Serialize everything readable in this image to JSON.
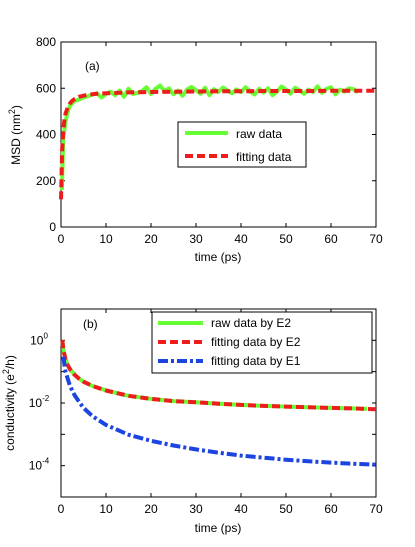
{
  "chart_data": [
    {
      "panel_label": "(a)",
      "type": "line",
      "xlabel": "time (ps)",
      "ylabel": "MSD (nm",
      "ylabel_sup": "2",
      "ylabel_tail": ")",
      "xlim": [
        0,
        70
      ],
      "ylim": [
        0,
        800
      ],
      "xticks": [
        "0",
        "10",
        "20",
        "30",
        "40",
        "50",
        "60",
        "70"
      ],
      "yticks": [
        "0",
        "200",
        "400",
        "600",
        "800"
      ],
      "grid": false,
      "legend_position": "center-right",
      "series": [
        {
          "name": "raw data",
          "color": "#66ff33",
          "style": "solid",
          "x": [
            0.2,
            0.5,
            1,
            1.5,
            2,
            2.5,
            3,
            3.5,
            4,
            5,
            6,
            7,
            8,
            9,
            10,
            11,
            12,
            13,
            14,
            15,
            16,
            17,
            18,
            19,
            20,
            21,
            22,
            23,
            24,
            25,
            26,
            27,
            28,
            29,
            30,
            31,
            32,
            33,
            34,
            35,
            36,
            37,
            38,
            39,
            40,
            41,
            42,
            43,
            44,
            45,
            46,
            47,
            48,
            49,
            50,
            51,
            52,
            53,
            54,
            55,
            56,
            57,
            58,
            59,
            60,
            61,
            62,
            63,
            64,
            65,
            66
          ],
          "y": [
            160,
            390,
            455,
            500,
            525,
            535,
            545,
            548,
            552,
            560,
            566,
            573,
            578,
            560,
            575,
            585,
            570,
            590,
            563,
            598,
            575,
            580,
            588,
            604,
            575,
            598,
            612,
            588,
            600,
            574,
            590,
            568,
            594,
            606,
            592,
            576,
            602,
            570,
            596,
            584,
            603,
            590,
            578,
            595,
            583,
            604,
            586,
            573,
            597,
            581,
            600,
            570,
            586,
            607,
            594,
            577,
            602,
            591,
            576,
            594,
            584,
            608,
            580,
            597,
            604,
            574,
            594,
            585,
            600,
            596,
            582
          ]
        },
        {
          "name": "fitting data",
          "color": "#ee1c1c",
          "style": "dashed",
          "x": [
            0,
            0.25,
            0.5,
            0.75,
            1,
            1.5,
            2,
            2.5,
            3,
            4,
            5,
            6,
            8,
            10,
            15,
            20,
            25,
            30,
            35,
            40,
            45,
            50,
            55,
            60,
            65,
            70
          ],
          "y": [
            120,
            330,
            420,
            462,
            490,
            518,
            535,
            546,
            553,
            563,
            568,
            572,
            576,
            578,
            582,
            584,
            585,
            586,
            587,
            587,
            588,
            588,
            588,
            589,
            589,
            589
          ]
        }
      ]
    },
    {
      "panel_label": "(b)",
      "type": "line",
      "xlabel": "time (ps)",
      "ylabel": "conductivity (e",
      "ylabel_sup": "2",
      "ylabel_tail": "/h)",
      "xlim": [
        0,
        70
      ],
      "ylim": [
        1e-05,
        10
      ],
      "yscale": "log",
      "xticks": [
        "0",
        "10",
        "20",
        "30",
        "40",
        "50",
        "60",
        "70"
      ],
      "yticks": [
        "10^0",
        "10^-2",
        "10^-4"
      ],
      "ytick_values": [
        1,
        0.01,
        0.0001
      ],
      "ytick_labels": [
        {
          "base": "10",
          "exp": "0"
        },
        {
          "base": "10",
          "exp": "-2"
        },
        {
          "base": "10",
          "exp": "-4"
        }
      ],
      "grid": false,
      "legend_position": "top-right",
      "series": [
        {
          "name": "raw data by E2",
          "color": "#66ff33",
          "style": "solid",
          "x": [
            0.3,
            0.5,
            1,
            1.5,
            2,
            3,
            4,
            5,
            7,
            10,
            15,
            20,
            25,
            30,
            35,
            40,
            45,
            50,
            55,
            60,
            65,
            68
          ],
          "y": [
            1.0,
            0.5,
            0.25,
            0.16,
            0.12,
            0.08,
            0.06,
            0.048,
            0.035,
            0.025,
            0.017,
            0.0135,
            0.0115,
            0.0105,
            0.0095,
            0.0087,
            0.0081,
            0.0077,
            0.0073,
            0.007,
            0.0067,
            0.0065
          ]
        },
        {
          "name": "fitting data by E2",
          "color": "#ee1c1c",
          "style": "dashed",
          "x": [
            0.3,
            0.5,
            1,
            1.5,
            2,
            3,
            4,
            5,
            7,
            10,
            15,
            20,
            25,
            30,
            35,
            40,
            45,
            50,
            55,
            60,
            65,
            70
          ],
          "y": [
            1.0,
            0.5,
            0.25,
            0.16,
            0.12,
            0.08,
            0.06,
            0.048,
            0.035,
            0.025,
            0.017,
            0.0135,
            0.0115,
            0.0105,
            0.0095,
            0.0087,
            0.0081,
            0.0077,
            0.0073,
            0.007,
            0.0067,
            0.0063
          ]
        },
        {
          "name": "fitting data by E1",
          "color": "#1c44e0",
          "style": "dash-dot",
          "x": [
            0.5,
            1,
            2,
            3,
            4,
            5,
            7,
            10,
            15,
            20,
            25,
            30,
            35,
            40,
            45,
            50,
            55,
            60,
            65,
            70
          ],
          "y": [
            0.3,
            0.1,
            0.035,
            0.018,
            0.011,
            0.007,
            0.0038,
            0.002,
            0.00097,
            0.00062,
            0.00044,
            0.00033,
            0.00026,
            0.00021,
            0.00018,
            0.000155,
            0.000138,
            0.000125,
            0.000115,
            0.000108
          ]
        }
      ]
    }
  ]
}
